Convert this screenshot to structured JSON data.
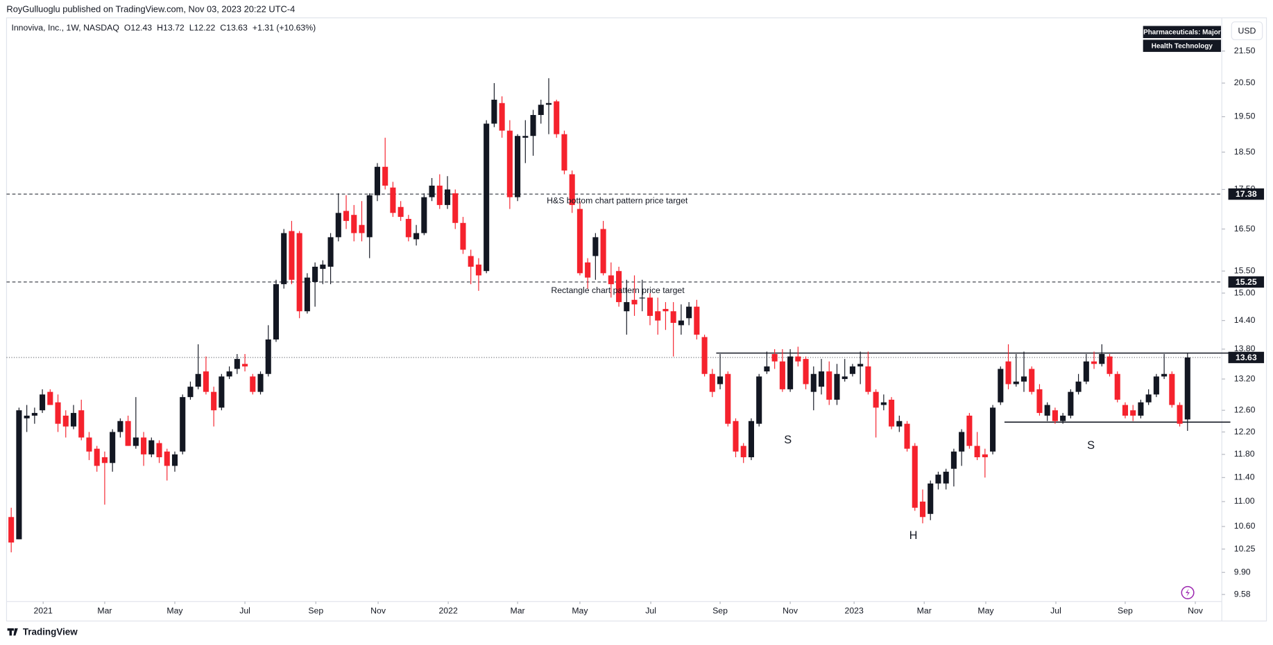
{
  "header": {
    "published": "RoyGulluoglu published on TradingView.com, Nov 03, 2023 20:22 UTC-4"
  },
  "chart_data": {
    "type": "candlestick",
    "legend": {
      "symbol": "Innoviva, Inc., 1W, NASDAQ",
      "open": "O12.43",
      "high": "H13.72",
      "low": "L12.22",
      "close": "C13.63",
      "change": "+1.31 (+10.63%)"
    },
    "badges": [
      "Pharmaceuticals: Major",
      "Health Technology"
    ],
    "currency": "USD",
    "up_color": "#131722",
    "down_color": "#f5222d",
    "log_scale": true,
    "ylim": [
      9.48,
      22.59
    ],
    "xlim": [
      -0.6,
      155.4
    ],
    "yticks": [
      {
        "value": 21.5,
        "label": "21.50"
      },
      {
        "value": 20.5,
        "label": "20.50"
      },
      {
        "value": 19.5,
        "label": "19.50"
      },
      {
        "value": 18.5,
        "label": "18.50"
      },
      {
        "value": 17.5,
        "label": "17.50"
      },
      {
        "value": 16.5,
        "label": "16.50"
      },
      {
        "value": 15.5,
        "label": "15.50"
      },
      {
        "value": 15,
        "label": "15.00"
      },
      {
        "value": 14.4,
        "label": "14.40"
      },
      {
        "value": 13.8,
        "label": "13.80"
      },
      {
        "value": 13.2,
        "label": "13.20"
      },
      {
        "value": 12.6,
        "label": "12.60"
      },
      {
        "value": 12.2,
        "label": "12.20"
      },
      {
        "value": 11.8,
        "label": "11.80"
      },
      {
        "value": 11.4,
        "label": "11.40"
      },
      {
        "value": 11,
        "label": "11.00"
      },
      {
        "value": 10.6,
        "label": "10.60"
      },
      {
        "value": 10.25,
        "label": "10.25"
      },
      {
        "value": 9.9,
        "label": "9.90"
      },
      {
        "value": 9.58,
        "label": "9.58"
      }
    ],
    "xticks": [
      {
        "value": 4.1,
        "label": "2021"
      },
      {
        "value": 12.0,
        "label": "Mar"
      },
      {
        "value": 21.0,
        "label": "May"
      },
      {
        "value": 30.0,
        "label": "Jul"
      },
      {
        "value": 39.1,
        "label": "Sep"
      },
      {
        "value": 47.1,
        "label": "Nov"
      },
      {
        "value": 56.1,
        "label": "2022"
      },
      {
        "value": 65.0,
        "label": "Mar"
      },
      {
        "value": 73.0,
        "label": "May"
      },
      {
        "value": 82.1,
        "label": "Jul"
      },
      {
        "value": 91.0,
        "label": "Sep"
      },
      {
        "value": 100.0,
        "label": "Nov"
      },
      {
        "value": 108.2,
        "label": "2023"
      },
      {
        "value": 117.2,
        "label": "Mar"
      },
      {
        "value": 125.1,
        "label": "May"
      },
      {
        "value": 134.1,
        "label": "Jul"
      },
      {
        "value": 143.0,
        "label": "Sep"
      },
      {
        "value": 152.0,
        "label": "Nov"
      }
    ],
    "price_lines": [
      {
        "value": 17.38,
        "style": "dashed"
      },
      {
        "value": 15.25,
        "style": "dashed"
      },
      {
        "value": 13.63,
        "style": "dotted"
      }
    ],
    "rectangle_lines": [
      {
        "value": 13.72,
        "from": 90.5,
        "to": 156.5
      },
      {
        "value": 12.38,
        "from": 127.5,
        "to": 156.5
      }
    ],
    "annotations": [
      {
        "text": "H&S bottom chart pattern price target",
        "x": 68.75,
        "y": 17.2
      },
      {
        "text": "Rectangle chart pattern price target",
        "x": 69.3,
        "y": 15.05
      },
      {
        "text": "S",
        "x": 99.7,
        "y": 12.05
      },
      {
        "text": "H",
        "x": 115.8,
        "y": 10.45
      },
      {
        "text": "S",
        "x": 138.6,
        "y": 11.95
      }
    ],
    "candles": [
      [
        10.75,
        10.9,
        10.2,
        10.35
      ],
      [
        10.4,
        12.65,
        10.4,
        12.6
      ],
      [
        12.45,
        12.7,
        12.2,
        12.5
      ],
      [
        12.5,
        12.65,
        12.35,
        12.55
      ],
      [
        12.6,
        13.0,
        12.55,
        12.9
      ],
      [
        12.95,
        13.0,
        12.7,
        12.7
      ],
      [
        12.75,
        12.9,
        12.2,
        12.35
      ],
      [
        12.5,
        12.6,
        12.1,
        12.3
      ],
      [
        12.3,
        12.7,
        12.25,
        12.55
      ],
      [
        12.6,
        12.8,
        12.05,
        12.1
      ],
      [
        12.1,
        12.2,
        11.7,
        11.85
      ],
      [
        11.9,
        11.95,
        11.5,
        11.6
      ],
      [
        11.75,
        11.85,
        10.95,
        11.65
      ],
      [
        11.65,
        12.25,
        11.5,
        12.2
      ],
      [
        12.2,
        12.45,
        12.1,
        12.4
      ],
      [
        12.4,
        12.5,
        11.95,
        11.95
      ],
      [
        11.95,
        12.85,
        11.9,
        12.1
      ],
      [
        12.1,
        12.2,
        11.6,
        11.8
      ],
      [
        11.8,
        12.1,
        11.75,
        12.05
      ],
      [
        12.0,
        12.05,
        11.65,
        11.75
      ],
      [
        11.85,
        11.9,
        11.35,
        11.6
      ],
      [
        11.6,
        11.85,
        11.5,
        11.8
      ],
      [
        11.85,
        12.9,
        11.8,
        12.85
      ],
      [
        12.85,
        13.15,
        12.8,
        13.05
      ],
      [
        13.05,
        13.9,
        13.0,
        13.3
      ],
      [
        13.35,
        13.65,
        12.9,
        12.95
      ],
      [
        12.95,
        13.05,
        12.3,
        12.6
      ],
      [
        12.65,
        13.3,
        12.6,
        13.25
      ],
      [
        13.25,
        13.45,
        13.2,
        13.35
      ],
      [
        13.4,
        13.7,
        13.3,
        13.6
      ],
      [
        13.5,
        13.7,
        13.35,
        13.45
      ],
      [
        13.25,
        13.3,
        12.9,
        12.95
      ],
      [
        12.95,
        13.35,
        12.9,
        13.3
      ],
      [
        13.3,
        14.3,
        13.25,
        14.0
      ],
      [
        14.0,
        15.3,
        13.95,
        15.2
      ],
      [
        15.2,
        16.5,
        15.1,
        16.4
      ],
      [
        16.45,
        16.7,
        15.2,
        15.3
      ],
      [
        16.4,
        16.45,
        14.45,
        14.6
      ],
      [
        14.6,
        15.45,
        14.55,
        15.35
      ],
      [
        15.25,
        15.7,
        14.7,
        15.6
      ],
      [
        15.55,
        15.75,
        15.2,
        15.65
      ],
      [
        15.6,
        16.4,
        15.2,
        16.3
      ],
      [
        16.3,
        17.4,
        16.2,
        16.9
      ],
      [
        16.95,
        17.35,
        16.5,
        16.7
      ],
      [
        16.85,
        17.1,
        16.2,
        16.4
      ],
      [
        16.6,
        17.2,
        16.2,
        16.4
      ],
      [
        16.3,
        17.4,
        15.8,
        17.35
      ],
      [
        17.35,
        18.2,
        17.2,
        18.1
      ],
      [
        18.1,
        18.9,
        17.5,
        17.6
      ],
      [
        17.55,
        17.7,
        16.8,
        16.9
      ],
      [
        17.05,
        17.2,
        16.7,
        16.8
      ],
      [
        16.75,
        16.85,
        16.2,
        16.3
      ],
      [
        16.25,
        16.6,
        16.1,
        16.4
      ],
      [
        16.4,
        17.4,
        16.35,
        17.3
      ],
      [
        17.3,
        17.8,
        17.2,
        17.6
      ],
      [
        17.6,
        17.9,
        17.0,
        17.1
      ],
      [
        17.1,
        17.85,
        17.0,
        17.5
      ],
      [
        17.4,
        17.5,
        16.5,
        16.65
      ],
      [
        16.65,
        16.8,
        15.9,
        16.0
      ],
      [
        15.85,
        16.0,
        15.2,
        15.6
      ],
      [
        15.65,
        15.8,
        15.05,
        15.4
      ],
      [
        15.5,
        19.4,
        15.45,
        19.3
      ],
      [
        19.3,
        20.5,
        19.2,
        20.0
      ],
      [
        19.9,
        20.1,
        18.9,
        19.1
      ],
      [
        19.1,
        19.4,
        17.0,
        17.3
      ],
      [
        17.3,
        19.0,
        17.2,
        18.95
      ],
      [
        18.9,
        19.4,
        18.2,
        18.95
      ],
      [
        18.95,
        19.7,
        18.4,
        19.55
      ],
      [
        19.55,
        20.0,
        19.3,
        19.85
      ],
      [
        19.85,
        20.65,
        19.0,
        19.9
      ],
      [
        19.95,
        20.0,
        18.9,
        19.0
      ],
      [
        19.0,
        19.1,
        17.9,
        18.0
      ],
      [
        17.9,
        18.0,
        16.9,
        17.1
      ],
      [
        17.0,
        17.2,
        15.4,
        15.45
      ],
      [
        15.7,
        15.8,
        15.1,
        15.35
      ],
      [
        15.85,
        16.4,
        15.3,
        16.3
      ],
      [
        16.5,
        16.7,
        15.4,
        15.45
      ],
      [
        15.4,
        15.7,
        14.9,
        15.2
      ],
      [
        15.5,
        15.6,
        14.7,
        14.8
      ],
      [
        14.6,
        15.3,
        14.1,
        14.8
      ],
      [
        14.85,
        15.4,
        14.5,
        14.75
      ],
      [
        14.9,
        15.3,
        14.6,
        14.9
      ],
      [
        14.9,
        15.0,
        14.3,
        14.5
      ],
      [
        14.6,
        14.9,
        14.1,
        14.4
      ],
      [
        14.65,
        14.8,
        14.2,
        14.6
      ],
      [
        14.6,
        14.8,
        13.65,
        14.35
      ],
      [
        14.3,
        14.75,
        14.1,
        14.4
      ],
      [
        14.45,
        14.8,
        14.3,
        14.7
      ],
      [
        14.7,
        14.85,
        14.0,
        14.1
      ],
      [
        14.05,
        14.1,
        13.25,
        13.3
      ],
      [
        13.3,
        13.4,
        12.85,
        12.95
      ],
      [
        13.1,
        13.7,
        13.0,
        13.25
      ],
      [
        13.3,
        13.35,
        12.3,
        12.35
      ],
      [
        12.4,
        12.45,
        11.75,
        11.85
      ],
      [
        11.95,
        12.0,
        11.65,
        11.75
      ],
      [
        11.75,
        12.45,
        11.7,
        12.4
      ],
      [
        12.35,
        13.3,
        12.3,
        13.25
      ],
      [
        13.35,
        13.75,
        13.3,
        13.45
      ],
      [
        13.7,
        13.8,
        13.4,
        13.55
      ],
      [
        13.55,
        13.8,
        12.95,
        13.0
      ],
      [
        13.0,
        13.8,
        12.95,
        13.65
      ],
      [
        13.65,
        13.85,
        13.45,
        13.55
      ],
      [
        13.6,
        13.65,
        13.0,
        13.1
      ],
      [
        12.95,
        13.45,
        12.6,
        13.3
      ],
      [
        13.05,
        13.6,
        12.9,
        13.35
      ],
      [
        13.35,
        13.55,
        12.7,
        12.8
      ],
      [
        12.8,
        13.5,
        12.7,
        13.3
      ],
      [
        13.2,
        13.6,
        13.15,
        13.25
      ],
      [
        13.3,
        13.5,
        13.25,
        13.45
      ],
      [
        13.45,
        13.75,
        13.1,
        13.5
      ],
      [
        13.45,
        13.75,
        12.9,
        12.95
      ],
      [
        12.95,
        13.0,
        12.1,
        12.65
      ],
      [
        12.7,
        12.9,
        12.6,
        12.75
      ],
      [
        12.8,
        12.85,
        12.25,
        12.3
      ],
      [
        12.3,
        12.5,
        12.2,
        12.4
      ],
      [
        12.35,
        12.4,
        11.85,
        11.9
      ],
      [
        11.95,
        12.0,
        10.85,
        10.9
      ],
      [
        11.0,
        11.2,
        10.65,
        10.75
      ],
      [
        10.8,
        11.35,
        10.7,
        11.3
      ],
      [
        11.3,
        11.5,
        11.2,
        11.45
      ],
      [
        11.3,
        11.55,
        11.2,
        11.5
      ],
      [
        11.55,
        11.9,
        11.25,
        11.85
      ],
      [
        11.85,
        12.25,
        11.6,
        12.2
      ],
      [
        12.5,
        12.55,
        11.9,
        11.95
      ],
      [
        11.95,
        12.2,
        11.7,
        11.75
      ],
      [
        11.8,
        11.9,
        11.4,
        11.75
      ],
      [
        11.85,
        12.7,
        11.8,
        12.65
      ],
      [
        12.75,
        13.45,
        12.7,
        13.4
      ],
      [
        13.55,
        13.9,
        13.0,
        13.1
      ],
      [
        13.1,
        13.7,
        13.05,
        13.15
      ],
      [
        13.15,
        13.75,
        12.95,
        13.25
      ],
      [
        13.4,
        13.45,
        12.9,
        12.95
      ],
      [
        13.0,
        13.1,
        12.5,
        12.55
      ],
      [
        12.5,
        12.75,
        12.4,
        12.7
      ],
      [
        12.6,
        12.65,
        12.35,
        12.4
      ],
      [
        12.4,
        12.55,
        12.35,
        12.5
      ],
      [
        12.5,
        13.0,
        12.45,
        12.95
      ],
      [
        12.95,
        13.3,
        12.9,
        13.15
      ],
      [
        13.15,
        13.7,
        13.1,
        13.55
      ],
      [
        13.55,
        13.75,
        13.4,
        13.5
      ],
      [
        13.5,
        13.9,
        13.45,
        13.7
      ],
      [
        13.65,
        13.7,
        13.25,
        13.3
      ],
      [
        13.3,
        13.35,
        12.75,
        12.8
      ],
      [
        12.7,
        12.75,
        12.45,
        12.5
      ],
      [
        12.6,
        12.7,
        12.4,
        12.5
      ],
      [
        12.5,
        12.8,
        12.45,
        12.75
      ],
      [
        12.75,
        13.0,
        12.7,
        12.9
      ],
      [
        12.9,
        13.3,
        12.85,
        13.25
      ],
      [
        13.25,
        13.7,
        13.2,
        13.3
      ],
      [
        13.3,
        13.35,
        12.65,
        12.7
      ],
      [
        12.7,
        12.75,
        12.3,
        12.35
      ],
      [
        12.43,
        13.72,
        12.22,
        13.63
      ]
    ]
  },
  "footer": {
    "brand": "TradingView"
  }
}
